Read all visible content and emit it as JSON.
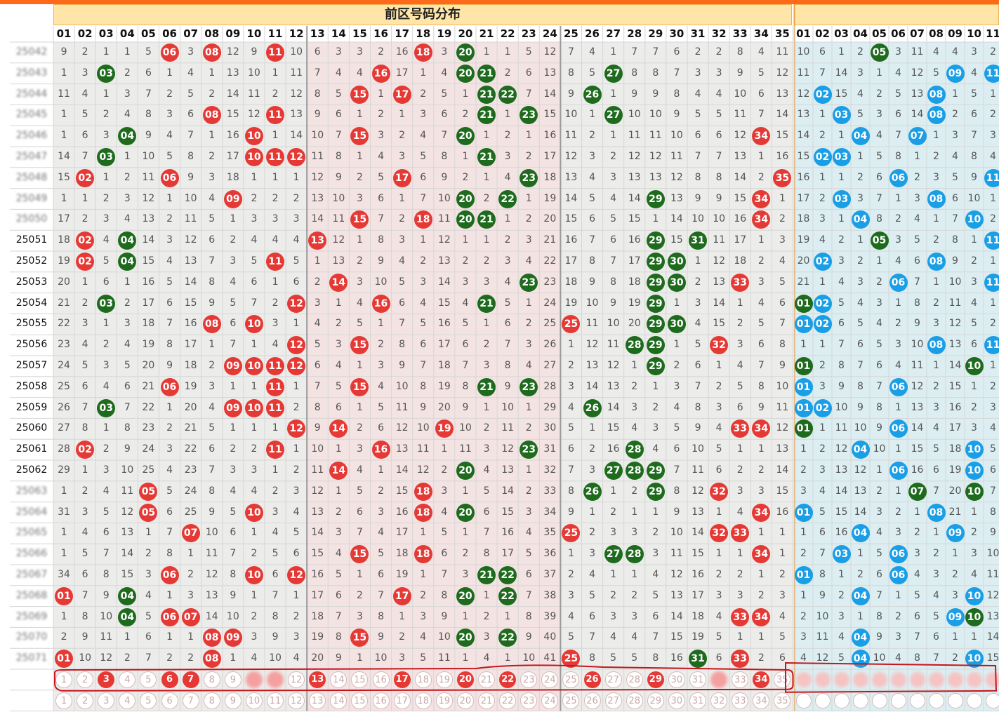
{
  "chart_data": {
    "type": "table",
    "title": "前区号码分布",
    "front_numbers": [
      "01",
      "02",
      "03",
      "04",
      "05",
      "06",
      "07",
      "08",
      "09",
      "10",
      "11",
      "12",
      "13",
      "14",
      "15",
      "16",
      "17",
      "18",
      "19",
      "20",
      "21",
      "22",
      "23",
      "24",
      "25",
      "26",
      "27",
      "28",
      "29",
      "30",
      "31",
      "32",
      "33",
      "34",
      "35"
    ],
    "back_numbers": [
      "01",
      "02",
      "03",
      "04",
      "05",
      "06",
      "07",
      "08",
      "09",
      "10",
      "11"
    ],
    "row_labels": [
      "25042",
      "25043",
      "25044",
      "25045",
      "25046",
      "25047",
      "25048",
      "25049",
      "25050",
      "25051",
      "25052",
      "25053",
      "25054",
      "25055",
      "25056",
      "25057",
      "25058",
      "25059",
      "25060",
      "25061",
      "25062",
      "25063",
      "25064",
      "25065",
      "25066",
      "25067",
      "25068",
      "25069",
      "25070",
      "25071"
    ],
    "blurred_rows": [
      0,
      1,
      2,
      3,
      4,
      5,
      6,
      7,
      8,
      21,
      22,
      23,
      24,
      25,
      26,
      27,
      28,
      29
    ],
    "front_rows": [
      [
        9,
        2,
        1,
        1,
        5,
        "*",
        3,
        "*",
        12,
        9,
        "*",
        10,
        6,
        3,
        3,
        2,
        16,
        "*",
        3,
        "*",
        1,
        1,
        5,
        12,
        7,
        4,
        1,
        7,
        7,
        6,
        2,
        2,
        8,
        4,
        11
      ],
      [
        1,
        3,
        "*",
        2,
        6,
        1,
        4,
        1,
        13,
        10,
        1,
        11,
        7,
        4,
        4,
        "*",
        17,
        1,
        4,
        "*",
        "*",
        2,
        6,
        13,
        8,
        5,
        "*",
        8,
        8,
        7,
        3,
        3,
        9,
        5,
        12
      ],
      [
        11,
        4,
        1,
        3,
        7,
        2,
        5,
        2,
        14,
        11,
        2,
        12,
        8,
        5,
        "*",
        1,
        "*",
        2,
        5,
        1,
        "*",
        "*",
        7,
        14,
        9,
        "*",
        1,
        9,
        9,
        8,
        4,
        4,
        10,
        6,
        13
      ],
      [
        1,
        5,
        2,
        4,
        8,
        3,
        6,
        "*",
        15,
        12,
        "*",
        13,
        9,
        6,
        1,
        2,
        1,
        3,
        6,
        2,
        "*",
        1,
        "*",
        15,
        10,
        1,
        "*",
        10,
        10,
        9,
        5,
        5,
        11,
        7,
        14
      ],
      [
        1,
        6,
        3,
        "*",
        9,
        4,
        7,
        1,
        16,
        "*",
        1,
        14,
        10,
        7,
        "*",
        3,
        2,
        4,
        7,
        "*",
        1,
        2,
        1,
        16,
        11,
        2,
        1,
        11,
        11,
        10,
        6,
        6,
        12,
        "*",
        15
      ],
      [
        14,
        7,
        "*",
        1,
        10,
        5,
        8,
        2,
        17,
        "*",
        "*",
        "*",
        11,
        8,
        1,
        4,
        3,
        5,
        8,
        1,
        "*",
        3,
        2,
        17,
        12,
        3,
        2,
        12,
        12,
        11,
        7,
        7,
        13,
        1,
        16
      ],
      [
        15,
        "*",
        1,
        2,
        11,
        "*",
        9,
        3,
        18,
        1,
        1,
        1,
        12,
        9,
        2,
        5,
        "*",
        6,
        9,
        2,
        1,
        4,
        "*",
        18,
        13,
        4,
        3,
        13,
        13,
        12,
        8,
        8,
        14,
        2,
        "*"
      ],
      [
        1,
        1,
        2,
        3,
        12,
        1,
        10,
        4,
        "*",
        2,
        2,
        2,
        13,
        10,
        3,
        6,
        1,
        7,
        10,
        "*",
        2,
        "*",
        1,
        19,
        14,
        5,
        4,
        14,
        "*",
        13,
        9,
        9,
        15,
        "*",
        1
      ],
      [
        17,
        2,
        3,
        4,
        13,
        2,
        11,
        5,
        1,
        3,
        3,
        3,
        14,
        11,
        "*",
        7,
        2,
        "*",
        11,
        "*",
        "*",
        1,
        2,
        20,
        15,
        6,
        5,
        15,
        1,
        14,
        10,
        10,
        16,
        "*",
        2
      ],
      [
        18,
        "*",
        4,
        "*",
        14,
        3,
        12,
        6,
        2,
        4,
        4,
        4,
        "*",
        12,
        1,
        8,
        3,
        1,
        12,
        1,
        1,
        2,
        3,
        21,
        16,
        7,
        6,
        16,
        "*",
        15,
        "*",
        11,
        17,
        1,
        3
      ],
      [
        19,
        "*",
        5,
        "*",
        15,
        4,
        13,
        7,
        3,
        5,
        "*",
        5,
        1,
        13,
        2,
        9,
        4,
        2,
        13,
        2,
        2,
        3,
        4,
        22,
        17,
        8,
        7,
        17,
        "*",
        "*",
        1,
        12,
        18,
        2,
        4
      ],
      [
        20,
        1,
        6,
        1,
        16,
        5,
        14,
        8,
        4,
        6,
        1,
        6,
        2,
        "*",
        3,
        10,
        5,
        3,
        14,
        3,
        3,
        4,
        "*",
        23,
        18,
        9,
        8,
        18,
        "*",
        "*",
        2,
        13,
        "*",
        3,
        5
      ],
      [
        21,
        2,
        "*",
        2,
        17,
        6,
        15,
        9,
        5,
        7,
        2,
        "*",
        3,
        1,
        4,
        "*",
        6,
        4,
        15,
        4,
        "*",
        5,
        1,
        24,
        19,
        10,
        9,
        19,
        "*",
        1,
        3,
        14,
        1,
        4,
        6
      ],
      [
        22,
        3,
        1,
        3,
        18,
        7,
        16,
        "*",
        6,
        "*",
        3,
        1,
        4,
        2,
        5,
        1,
        7,
        5,
        16,
        5,
        1,
        6,
        2,
        25,
        "*",
        11,
        10,
        20,
        "*",
        "*",
        4,
        15,
        2,
        5,
        7
      ],
      [
        23,
        4,
        2,
        4,
        19,
        8,
        17,
        1,
        7,
        1,
        4,
        "*",
        5,
        3,
        "*",
        2,
        8,
        6,
        17,
        6,
        2,
        7,
        3,
        26,
        1,
        12,
        11,
        "*",
        "*",
        1,
        5,
        "*",
        3,
        6,
        8
      ],
      [
        24,
        5,
        3,
        5,
        20,
        9,
        18,
        2,
        "*",
        "*",
        "*",
        "*",
        6,
        4,
        1,
        3,
        9,
        7,
        18,
        7,
        3,
        8,
        4,
        27,
        2,
        13,
        12,
        1,
        "*",
        2,
        6,
        1,
        4,
        7,
        9
      ],
      [
        25,
        6,
        4,
        6,
        21,
        "*",
        19,
        3,
        1,
        1,
        "*",
        1,
        7,
        5,
        "*",
        4,
        10,
        8,
        19,
        8,
        "*",
        9,
        "*",
        28,
        3,
        14,
        13,
        2,
        1,
        3,
        7,
        2,
        5,
        8,
        10
      ],
      [
        26,
        7,
        "*",
        7,
        22,
        1,
        20,
        4,
        "*",
        "*",
        "*",
        2,
        8,
        6,
        1,
        5,
        11,
        9,
        20,
        9,
        1,
        10,
        1,
        29,
        4,
        "*",
        14,
        3,
        2,
        4,
        8,
        3,
        6,
        9,
        11
      ],
      [
        27,
        8,
        1,
        8,
        23,
        2,
        21,
        5,
        1,
        1,
        1,
        "*",
        9,
        "*",
        2,
        6,
        12,
        10,
        "*",
        10,
        2,
        11,
        2,
        30,
        5,
        1,
        15,
        4,
        3,
        5,
        9,
        4,
        "*",
        "*",
        12
      ],
      [
        28,
        "*",
        2,
        9,
        24,
        3,
        22,
        6,
        2,
        2,
        "*",
        1,
        10,
        1,
        3,
        "*",
        13,
        11,
        1,
        11,
        3,
        12,
        "*",
        31,
        6,
        2,
        16,
        "*",
        4,
        6,
        10,
        5,
        1,
        1,
        13
      ],
      [
        29,
        1,
        3,
        10,
        25,
        4,
        23,
        7,
        3,
        3,
        1,
        2,
        11,
        "*",
        4,
        1,
        14,
        12,
        2,
        "*",
        4,
        13,
        1,
        32,
        7,
        3,
        "*",
        "*",
        "*",
        7,
        11,
        6,
        2,
        2,
        14
      ],
      [
        1,
        2,
        4,
        11,
        "*",
        5,
        24,
        8,
        4,
        4,
        2,
        3,
        12,
        1,
        5,
        2,
        15,
        "*",
        3,
        1,
        5,
        14,
        2,
        33,
        8,
        "*",
        1,
        2,
        "*",
        8,
        12,
        "*",
        3,
        3,
        15
      ],
      [
        31,
        3,
        5,
        12,
        "*",
        6,
        25,
        9,
        5,
        "*",
        3,
        4,
        13,
        2,
        6,
        3,
        16,
        "*",
        4,
        "*",
        6,
        15,
        3,
        34,
        9,
        1,
        2,
        1,
        1,
        9,
        13,
        1,
        4,
        "*",
        16
      ],
      [
        1,
        4,
        6,
        13,
        1,
        7,
        "*",
        10,
        6,
        1,
        4,
        5,
        14,
        3,
        7,
        4,
        17,
        1,
        5,
        1,
        7,
        16,
        4,
        35,
        "*",
        2,
        3,
        3,
        2,
        10,
        14,
        "*",
        "*",
        1,
        1
      ],
      [
        1,
        5,
        7,
        14,
        2,
        8,
        1,
        11,
        7,
        2,
        5,
        6,
        15,
        4,
        "*",
        5,
        18,
        "*",
        6,
        2,
        8,
        17,
        5,
        36,
        1,
        3,
        "*",
        "*",
        3,
        11,
        15,
        1,
        1,
        "*",
        1
      ],
      [
        34,
        6,
        8,
        15,
        3,
        "*",
        2,
        12,
        8,
        "*",
        6,
        "*",
        16,
        5,
        1,
        6,
        19,
        1,
        7,
        3,
        "*",
        "*",
        6,
        37,
        2,
        4,
        1,
        1,
        4,
        12,
        16,
        2,
        2,
        1,
        2
      ],
      [
        "*",
        7,
        9,
        "*",
        4,
        1,
        3,
        13,
        9,
        1,
        7,
        1,
        17,
        6,
        2,
        7,
        "*",
        2,
        8,
        "*",
        1,
        "*",
        7,
        38,
        3,
        5,
        2,
        2,
        5,
        13,
        17,
        3,
        3,
        2,
        3
      ],
      [
        1,
        8,
        10,
        "*",
        5,
        "*",
        "*",
        14,
        10,
        2,
        8,
        2,
        18,
        7,
        3,
        8,
        1,
        3,
        9,
        1,
        2,
        1,
        8,
        39,
        4,
        6,
        3,
        3,
        6,
        14,
        18,
        4,
        "*",
        "*",
        4
      ],
      [
        2,
        9,
        11,
        1,
        6,
        1,
        1,
        "*",
        "*",
        3,
        9,
        3,
        19,
        8,
        "*",
        9,
        2,
        4,
        10,
        "*",
        3,
        "*",
        9,
        40,
        5,
        7,
        4,
        4,
        7,
        15,
        19,
        5,
        1,
        1,
        5
      ],
      [
        "*",
        10,
        12,
        2,
        7,
        2,
        2,
        "*",
        1,
        4,
        10,
        4,
        20,
        9,
        1,
        10,
        3,
        5,
        11,
        1,
        4,
        1,
        10,
        41,
        "*",
        8,
        5,
        5,
        8,
        16,
        "*",
        6,
        "*",
        2,
        6
      ]
    ],
    "back_rows": [
      [
        10,
        6,
        1,
        2,
        "*",
        3,
        11,
        4,
        4,
        3,
        2
      ],
      [
        11,
        7,
        14,
        3,
        1,
        4,
        12,
        5,
        "*",
        4,
        "*"
      ],
      [
        12,
        "*",
        15,
        4,
        2,
        5,
        13,
        "*",
        1,
        5,
        1
      ],
      [
        13,
        1,
        "*",
        5,
        3,
        6,
        14,
        "*",
        2,
        6,
        2
      ],
      [
        14,
        2,
        1,
        "*",
        4,
        7,
        "*",
        1,
        3,
        7,
        3
      ],
      [
        15,
        "*",
        "*",
        1,
        5,
        8,
        1,
        2,
        4,
        8,
        4
      ],
      [
        16,
        1,
        1,
        2,
        6,
        "*",
        2,
        3,
        5,
        9,
        "*"
      ],
      [
        17,
        2,
        "*",
        3,
        7,
        1,
        3,
        "*",
        6,
        10,
        1
      ],
      [
        18,
        3,
        1,
        "*",
        8,
        2,
        4,
        1,
        7,
        "*",
        2
      ],
      [
        19,
        4,
        2,
        1,
        "*",
        3,
        5,
        2,
        8,
        1,
        "*"
      ],
      [
        20,
        "*",
        3,
        2,
        1,
        4,
        6,
        "*",
        9,
        2,
        1
      ],
      [
        21,
        1,
        4,
        3,
        2,
        "*",
        7,
        1,
        10,
        3,
        "*"
      ],
      [
        "*",
        "*",
        5,
        4,
        3,
        1,
        8,
        2,
        11,
        4,
        1
      ],
      [
        "*",
        "*",
        6,
        5,
        4,
        2,
        9,
        3,
        12,
        5,
        2
      ],
      [
        1,
        1,
        7,
        6,
        5,
        3,
        10,
        "*",
        13,
        6,
        "*"
      ],
      [
        "*",
        2,
        8,
        7,
        6,
        4,
        11,
        1,
        14,
        "*",
        1
      ],
      [
        "*",
        3,
        9,
        8,
        7,
        "*",
        12,
        2,
        15,
        1,
        2
      ],
      [
        "*",
        "*",
        10,
        9,
        8,
        1,
        13,
        3,
        16,
        2,
        3
      ],
      [
        "*",
        1,
        11,
        10,
        9,
        "*",
        14,
        4,
        17,
        3,
        4
      ],
      [
        1,
        2,
        12,
        "*",
        10,
        1,
        15,
        5,
        18,
        "*",
        5
      ],
      [
        2,
        3,
        13,
        12,
        1,
        "*",
        16,
        6,
        19,
        "*",
        6
      ],
      [
        3,
        4,
        14,
        13,
        2,
        1,
        "*",
        7,
        20,
        "*",
        7
      ],
      [
        "*",
        5,
        15,
        14,
        3,
        2,
        1,
        "*",
        21,
        1,
        8
      ],
      [
        1,
        6,
        16,
        "*",
        4,
        3,
        2,
        1,
        "*",
        2,
        9
      ],
      [
        2,
        7,
        "*",
        1,
        5,
        "*",
        3,
        2,
        1,
        3,
        10
      ],
      [
        "*",
        8,
        1,
        2,
        6,
        "*",
        4,
        3,
        2,
        4,
        11
      ],
      [
        1,
        9,
        2,
        "*",
        7,
        1,
        5,
        4,
        3,
        "*",
        12
      ],
      [
        2,
        10,
        3,
        1,
        8,
        2,
        6,
        5,
        "*",
        "*",
        13
      ],
      [
        3,
        11,
        4,
        "*",
        9,
        3,
        7,
        6,
        1,
        1,
        14
      ],
      [
        4,
        12,
        5,
        "*",
        10,
        4,
        8,
        7,
        2,
        "*",
        15
      ]
    ],
    "prediction_rows": [
      {
        "front_selected": [
          3,
          6,
          7,
          13,
          17,
          20,
          22,
          26,
          29,
          34
        ],
        "front_blurred": [
          10,
          11,
          32
        ]
      },
      {
        "front_selected": [],
        "front_blurred": []
      }
    ],
    "colors": {
      "front_hit": "#e53935",
      "front_hit_alt": "#1e6b1e",
      "back_hit": "#1a9ee6",
      "back_hit_alt": "#1e6b1e",
      "grid": "#d6d6d6",
      "band_pink": "#f4e3e3",
      "band_gray": "#ececea",
      "back_bg": "#dceef2",
      "annotation": "#c4161c"
    }
  }
}
